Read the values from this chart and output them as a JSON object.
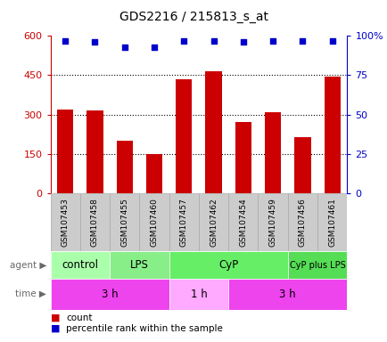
{
  "title": "GDS2216 / 215813_s_at",
  "samples": [
    "GSM107453",
    "GSM107458",
    "GSM107455",
    "GSM107460",
    "GSM107457",
    "GSM107462",
    "GSM107454",
    "GSM107459",
    "GSM107456",
    "GSM107461"
  ],
  "counts": [
    320,
    315,
    200,
    148,
    435,
    465,
    270,
    310,
    215,
    445
  ],
  "percentile_ranks": [
    97,
    96,
    93,
    93,
    97,
    97,
    96,
    97,
    97,
    97
  ],
  "ylim_left": [
    0,
    600
  ],
  "ylim_right": [
    0,
    100
  ],
  "yticks_left": [
    0,
    150,
    300,
    450,
    600
  ],
  "ytick_labels_left": [
    "0",
    "150",
    "300",
    "450",
    "600"
  ],
  "yticks_right": [
    0,
    25,
    50,
    75,
    100
  ],
  "ytick_labels_right": [
    "0",
    "25",
    "50",
    "75",
    "100%"
  ],
  "bar_color": "#cc0000",
  "dot_color": "#0000cc",
  "agent_groups": [
    {
      "label": "control",
      "start": 0,
      "end": 2,
      "color": "#aaffaa"
    },
    {
      "label": "LPS",
      "start": 2,
      "end": 4,
      "color": "#88ee88"
    },
    {
      "label": "CyP",
      "start": 4,
      "end": 8,
      "color": "#66ee66"
    },
    {
      "label": "CyP plus LPS",
      "start": 8,
      "end": 10,
      "color": "#55dd55"
    }
  ],
  "time_groups": [
    {
      "label": "3 h",
      "start": 0,
      "end": 4,
      "color": "#ee44ee"
    },
    {
      "label": "1 h",
      "start": 4,
      "end": 6,
      "color": "#ffaaff"
    },
    {
      "label": "3 h",
      "start": 6,
      "end": 10,
      "color": "#ee44ee"
    }
  ],
  "legend_count_color": "#cc0000",
  "legend_dot_color": "#0000cc",
  "background_color": "#ffffff",
  "tick_color_left": "#cc0000",
  "tick_color_right": "#0000cc",
  "label_bg_color": "#cccccc",
  "label_edge_color": "#aaaaaa"
}
